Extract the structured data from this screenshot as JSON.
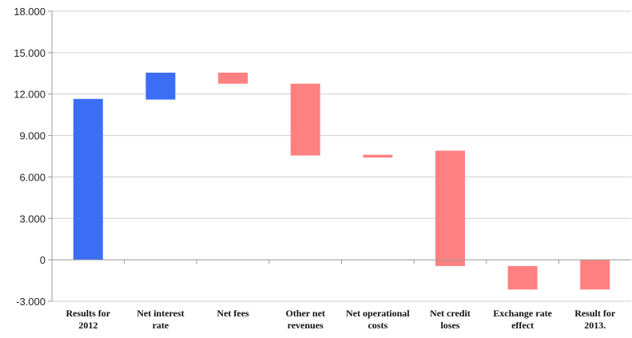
{
  "chart_data": {
    "type": "bar",
    "subtype": "waterfall",
    "title": "",
    "xlabel": "",
    "ylabel": "",
    "ylim": [
      -3000,
      18000
    ],
    "yticks": [
      -3000,
      0,
      3000,
      6000,
      9000,
      12000,
      15000,
      18000
    ],
    "ytick_labels": [
      "-3.000",
      "0",
      "3.000",
      "6.000",
      "9.000",
      "12.000",
      "15.000",
      "18.000"
    ],
    "grid": "horizontal",
    "legend": "none",
    "categories": [
      [
        "Results for",
        "2012"
      ],
      [
        "Net interest",
        "rate"
      ],
      [
        "Net fees"
      ],
      [
        "Other net",
        "revenues"
      ],
      [
        "Net operational",
        "costs"
      ],
      [
        "Net credit",
        "loses"
      ],
      [
        "Exchange rate",
        "effect"
      ],
      [
        "Result for",
        "2013."
      ]
    ],
    "bars": [
      {
        "start": 0,
        "end": 11650,
        "color": "#3b6ef5"
      },
      {
        "start": 11600,
        "end": 13550,
        "color": "#3b6ef5"
      },
      {
        "start": 13550,
        "end": 12750,
        "color": "#ff8080"
      },
      {
        "start": 12750,
        "end": 7550,
        "color": "#ff8080"
      },
      {
        "start": 7600,
        "end": 7400,
        "color": "#ff8080"
      },
      {
        "start": 7900,
        "end": -450,
        "color": "#ff8080"
      },
      {
        "start": -450,
        "end": -2150,
        "color": "#ff8080"
      },
      {
        "start": 0,
        "end": -2150,
        "color": "#ff8080"
      }
    ],
    "colors": {
      "increase": "#3b6ef5",
      "decrease": "#ff8080",
      "grid": "#cfcfcf",
      "axis": "#999999"
    }
  }
}
